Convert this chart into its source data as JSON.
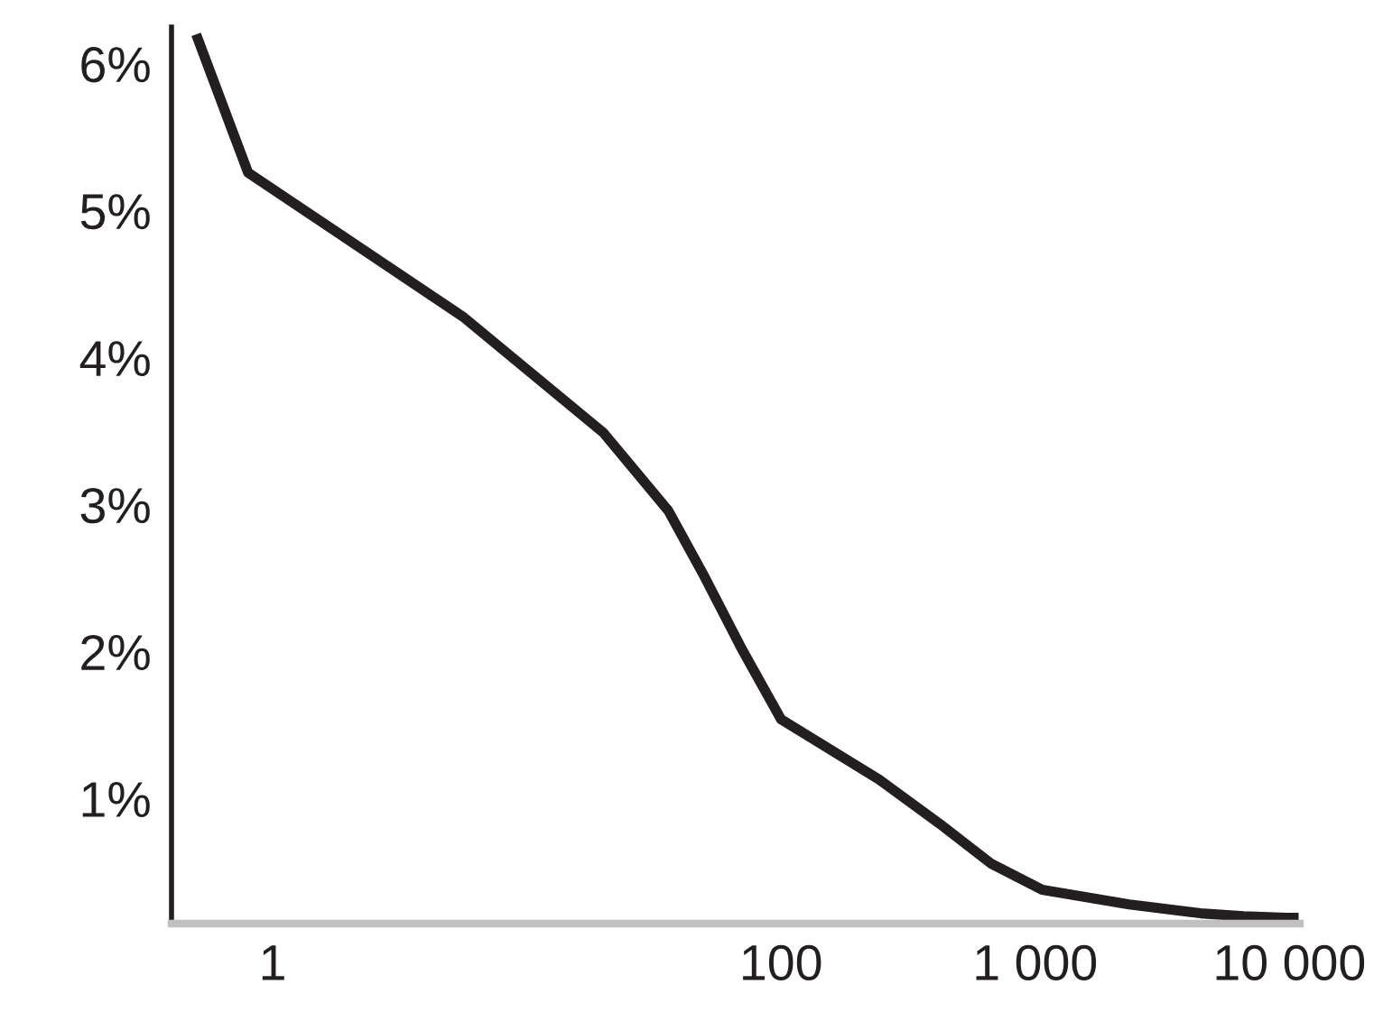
{
  "chart_data": {
    "type": "line",
    "x": [
      0.5,
      0.8,
      5.6,
      20,
      36,
      50,
      70,
      100,
      243,
      420,
      668,
      1065,
      2342,
      4469,
      6596,
      9780,
      10870
    ],
    "series": [
      {
        "color": "#231f20",
        "values": [
          6.2,
          5.26,
          4.28,
          3.49,
          2.96,
          2.51,
          2.02,
          1.54,
          1.13,
          0.83,
          0.56,
          0.38,
          0.28,
          0.22,
          0.2,
          0.19,
          0.19
        ]
      }
    ],
    "xlim": [
      0.4,
      11000
    ],
    "log": "x",
    "xticks": [
      1,
      100,
      {
        "value": 1000,
        "label": "1 000"
      },
      {
        "value": 10000,
        "label": "10 000"
      }
    ],
    "ylim": [
      0.15,
      6.25
    ],
    "yticks": [
      {
        "value": 1,
        "label": "1%"
      },
      {
        "value": 2,
        "label": "2%"
      },
      {
        "value": 3,
        "label": "3%"
      },
      {
        "value": 4,
        "label": "4%"
      },
      {
        "value": 5,
        "label": "5%"
      },
      {
        "value": 6,
        "label": "6%"
      }
    ],
    "grid": false,
    "legend": false,
    "marker": "none",
    "line_style": "solid"
  }
}
